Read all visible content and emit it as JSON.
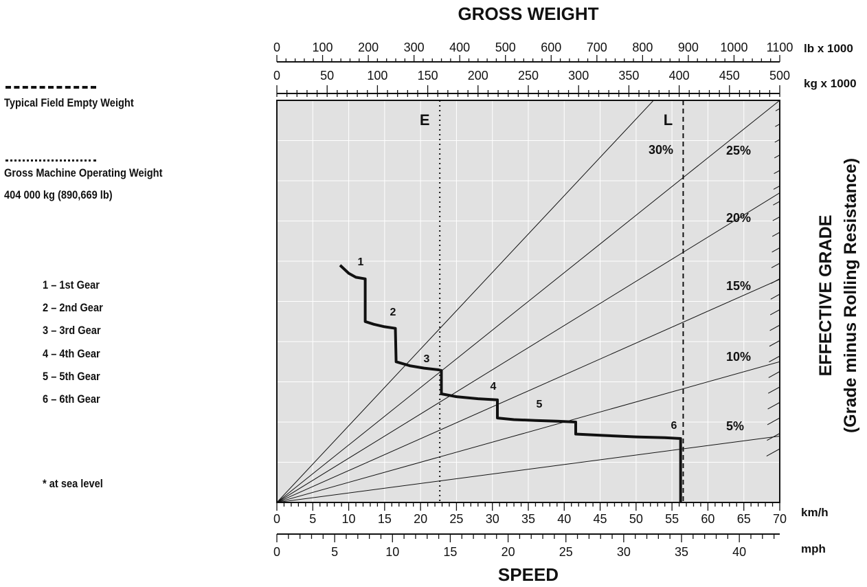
{
  "legend": {
    "empty_label": "Typical Field Empty Weight",
    "gross_label": "Gross Machine Operating Weight",
    "gross_value": "404 000 kg (890,669 lb)",
    "gears": [
      "1 – 1st Gear",
      "2 – 2nd Gear",
      "3 – 3rd Gear",
      "4 – 4th Gear",
      "5 – 5th Gear",
      "6 – 6th Gear"
    ],
    "footnote": "* at sea level"
  },
  "chart_data": {
    "type": "line",
    "title": "GROSS WEIGHT",
    "xlabel": "SPEED",
    "ylabel": "EFFECTIVE GRADE",
    "ylabel2": "(Grade minus Rolling Resistance)",
    "x_unit_kmh": "km/h",
    "x_unit_mph": "mph",
    "top_unit_lb": "lb x 1000",
    "top_unit_kg": "kg x 1000",
    "xlim_kmh": [
      0,
      70
    ],
    "top_lb_range": [
      0,
      1100
    ],
    "top_kg_range": [
      0,
      500
    ],
    "kmh_ticks": [
      "0",
      "5",
      "10",
      "15",
      "20",
      "25",
      "30",
      "35",
      "40",
      "45",
      "50",
      "55",
      "60",
      "65",
      "70"
    ],
    "mph_ticks": [
      "0",
      "5",
      "10",
      "15",
      "20",
      "25",
      "30",
      "35",
      "40"
    ],
    "lb_ticks": [
      "0",
      "100",
      "200",
      "300",
      "400",
      "500",
      "600",
      "700",
      "800",
      "900",
      "1000",
      "1100"
    ],
    "kg_ticks": [
      "0",
      "50",
      "100",
      "150",
      "200",
      "250",
      "300",
      "350",
      "400",
      "450",
      "500"
    ],
    "grade_lines": [
      "5%",
      "10%",
      "15%",
      "20%",
      "25%",
      "30%"
    ],
    "weight_markers": [
      {
        "label": "E",
        "kg": 162,
        "style": "dotted"
      },
      {
        "label": "L",
        "kg": 404,
        "style": "dashed"
      }
    ],
    "gear_labels": [
      "1",
      "2",
      "3",
      "4",
      "5",
      "6"
    ],
    "series": [
      {
        "points_kmh_frac": [
          [
            8.8,
            0.59
          ],
          [
            10.0,
            0.57
          ],
          [
            11.0,
            0.56
          ],
          [
            12.3,
            0.556
          ],
          [
            12.3,
            0.45
          ],
          [
            13.5,
            0.443
          ],
          [
            15.0,
            0.437
          ],
          [
            16.5,
            0.433
          ],
          [
            16.6,
            0.35
          ],
          [
            18.5,
            0.34
          ],
          [
            20.5,
            0.334
          ],
          [
            22.5,
            0.33
          ],
          [
            22.9,
            0.328
          ],
          [
            22.9,
            0.27
          ],
          [
            25.0,
            0.263
          ],
          [
            28.0,
            0.258
          ],
          [
            30.7,
            0.255
          ],
          [
            30.7,
            0.21
          ],
          [
            33.0,
            0.206
          ],
          [
            36.0,
            0.204
          ],
          [
            39.0,
            0.202
          ],
          [
            41.6,
            0.2
          ],
          [
            41.6,
            0.17
          ],
          [
            45.0,
            0.167
          ],
          [
            50.0,
            0.163
          ],
          [
            54.0,
            0.161
          ],
          [
            56.2,
            0.159
          ],
          [
            56.2,
            0.0
          ]
        ]
      }
    ]
  }
}
